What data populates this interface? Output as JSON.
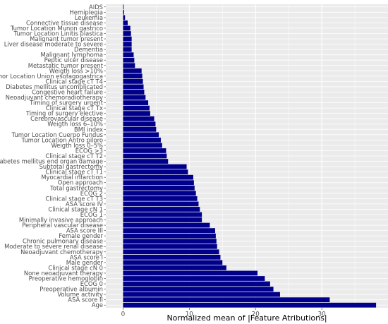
{
  "chart_data": {
    "type": "bar",
    "orientation": "horizontal",
    "title": "",
    "xlabel": "Normalized mean of |Feature Atributions|",
    "ylabel": "",
    "xlim": [
      -2.6,
      40
    ],
    "x_ticks": [
      0,
      10,
      20,
      30
    ],
    "x_tick_labels": [
      "0",
      "10",
      "20",
      "30"
    ],
    "grid": true,
    "legend": "none",
    "colors": {
      "bar": "#00008B",
      "panel": "#EBEBEB",
      "grid": "#FFFFFF"
    },
    "categories": [
      "AIDS",
      "Hemiplegia",
      "Leukemia",
      "Connective tissue disease",
      "Tumor Location Munon gastrico",
      "Tumor Location Linitis plastica",
      "Malignant tumor present",
      "Liver disease moderate to severe",
      "Dementia",
      "Malignant lymphoma",
      "Peptic ulcer disease",
      "Metastatic tumor present",
      "Weigth loss >10%",
      "Tumor Location Union esofagogastrica",
      "Clinical stage cT T4",
      "Diabetes mellitus uncomplicated",
      "Congestive heart failure",
      "Neoadjuvant chemoradiotherapy",
      "Timing of surgery urgent",
      "Clinical stage cT Tx",
      "Timing of surgery elective",
      "Cerebrovascular disease",
      "Weigth loss 6–10%",
      "BMI index",
      "Tumor Location Cuerpo Fundus",
      "Tumor Location Antro piloro",
      "Weigth loss 0–5%",
      "ECOG >3",
      "Clinical stage cT T2",
      "Diabetes mellitus end organ damage",
      "Subtotal gastrectomy",
      "Clinical stage cT T1",
      "Myocardial infarction",
      "Open approach",
      "Total gastrectomy",
      "ECOG 2",
      "Clinical stage cT T3",
      "ASA score IV",
      "Clinical stage cN 1",
      "ECOG 1",
      "Minimally invasive approach",
      "Peripheral vascular disease",
      "ASA score III",
      "Female gender",
      "Chronic pulmonary disease",
      "Moderate to severe renal disease",
      "Neoadjuvant chemotherapy",
      "ASA score I",
      "Male gender",
      "Clinical stage cN 0",
      "None neoadjuvant therapy",
      "Preoperative hemoglobin",
      "ECOG 0",
      "Preoperative albumin",
      "Volume activity",
      "ASA score II",
      "Age"
    ],
    "values": [
      0.1,
      0.15,
      0.3,
      0.7,
      1.1,
      1.2,
      1.3,
      1.3,
      1.3,
      1.6,
      1.7,
      1.8,
      2.8,
      2.9,
      3.0,
      3.1,
      3.2,
      3.4,
      3.8,
      4.0,
      4.1,
      4.7,
      4.9,
      5.0,
      5.4,
      5.7,
      5.9,
      6.5,
      6.6,
      6.8,
      9.6,
      9.8,
      10.6,
      10.7,
      10.8,
      11.0,
      11.2,
      11.4,
      11.6,
      11.9,
      11.9,
      13.1,
      13.9,
      14.0,
      14.1,
      14.2,
      14.5,
      14.7,
      15.0,
      15.6,
      20.3,
      21.4,
      22.2,
      22.7,
      23.7,
      31.2,
      38.2
    ]
  }
}
